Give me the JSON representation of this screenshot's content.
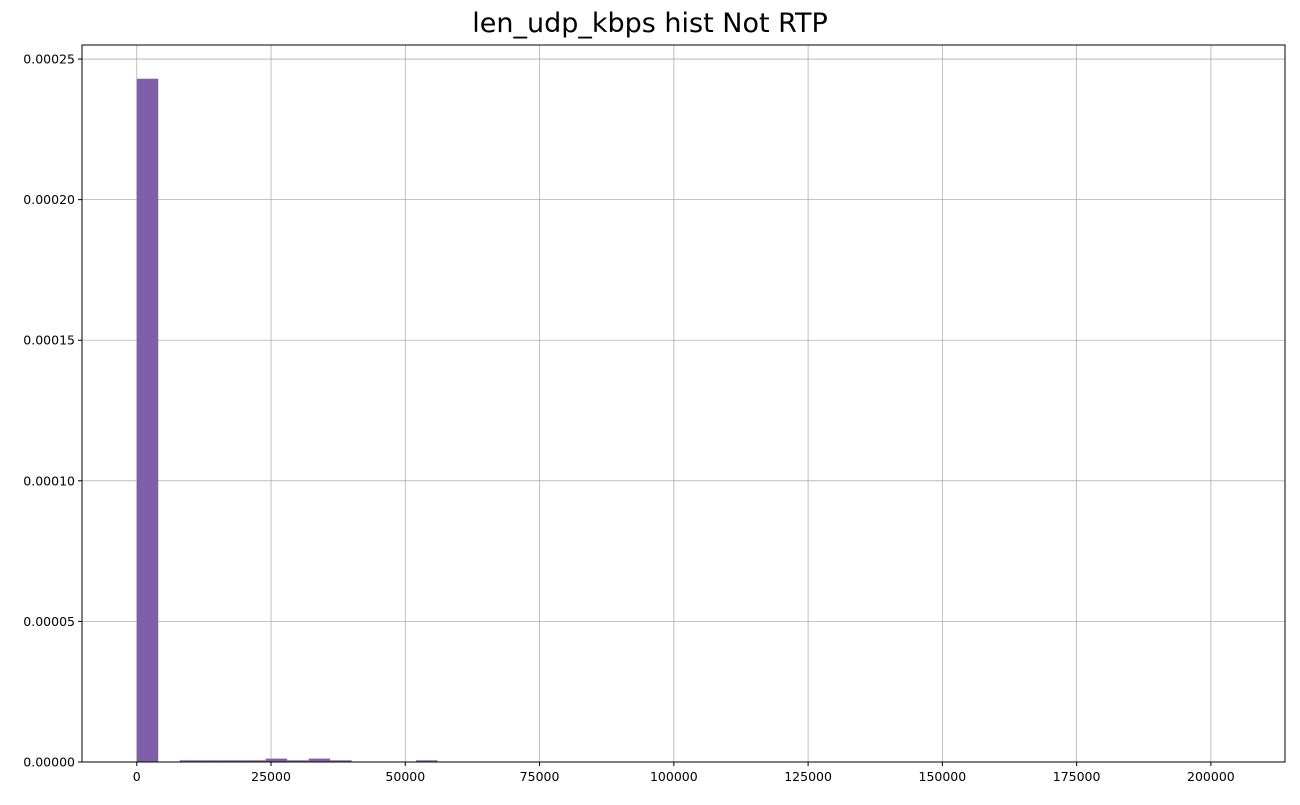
{
  "chart_data": {
    "type": "bar",
    "title": "len_udp_kbps hist Not RTP",
    "xlabel": "",
    "ylabel": "",
    "xlim": [
      -10200,
      213800
    ],
    "ylim": [
      0,
      0.000255
    ],
    "grid": true,
    "bar_color": "#7f5fa8",
    "bin_width": 4000,
    "bins": [
      {
        "x0": 0,
        "x1": 4000,
        "density": 0.000243
      },
      {
        "x0": 8000,
        "x1": 12000,
        "density": 6e-07
      },
      {
        "x0": 12000,
        "x1": 16000,
        "density": 6e-07
      },
      {
        "x0": 16000,
        "x1": 20000,
        "density": 6e-07
      },
      {
        "x0": 20000,
        "x1": 24000,
        "density": 6e-07
      },
      {
        "x0": 24000,
        "x1": 28000,
        "density": 1.2e-06
      },
      {
        "x0": 28000,
        "x1": 32000,
        "density": 6e-07
      },
      {
        "x0": 32000,
        "x1": 36000,
        "density": 1.2e-06
      },
      {
        "x0": 36000,
        "x1": 40000,
        "density": 6e-07
      },
      {
        "x0": 52000,
        "x1": 56000,
        "density": 6e-07
      }
    ],
    "x_ticks": [
      0,
      25000,
      50000,
      75000,
      100000,
      125000,
      150000,
      175000,
      200000
    ],
    "x_tick_labels": [
      "0",
      "25000",
      "50000",
      "75000",
      "100000",
      "125000",
      "150000",
      "175000",
      "200000"
    ],
    "y_ticks": [
      0,
      5e-05,
      0.0001,
      0.00015,
      0.0002,
      0.00025
    ],
    "y_tick_labels": [
      "0.00000",
      "0.00005",
      "0.00010",
      "0.00015",
      "0.00020",
      "0.00025"
    ]
  }
}
